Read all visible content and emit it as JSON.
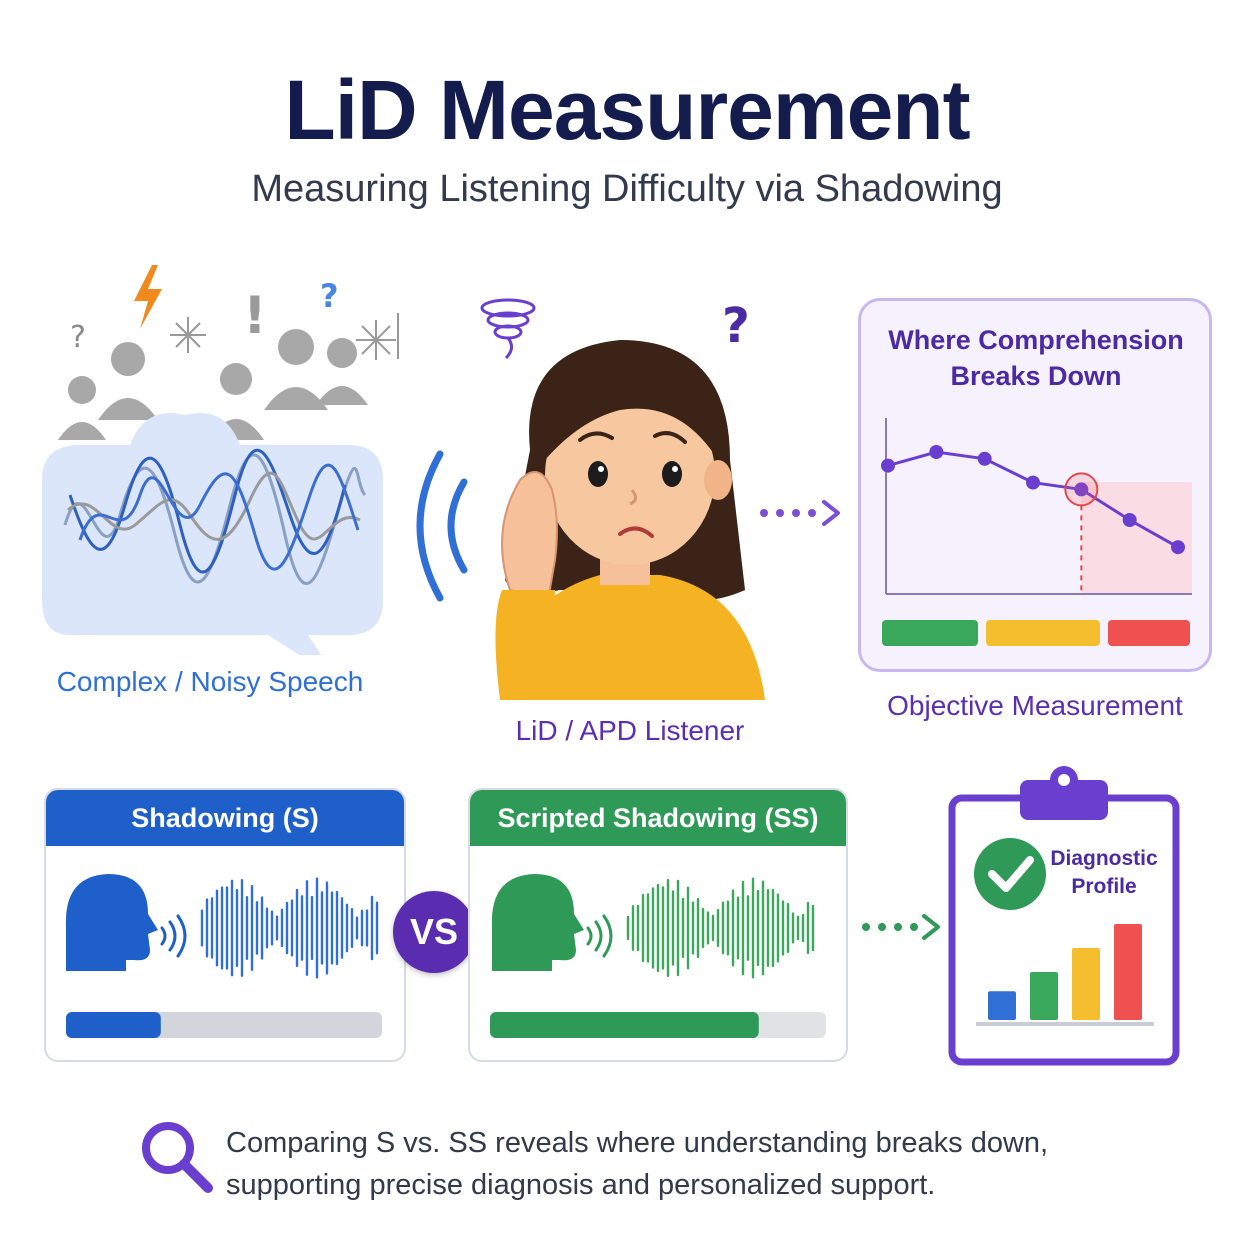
{
  "header": {
    "title": "LiD Measurement",
    "subtitle": "Measuring Listening Difficulty via Shadowing"
  },
  "scene": {
    "speech_caption": "Complex / Noisy Speech",
    "listener_caption": "LiD / APD Listener",
    "measurement_caption": "Objective Measurement"
  },
  "chart": {
    "title": "Where Comprehension Breaks Down",
    "series_values": [
      0.72,
      0.8,
      0.76,
      0.62,
      0.58,
      0.4,
      0.24
    ],
    "breakdown_index": 4,
    "status_colors": [
      "#3aa85a",
      "#f5be2e",
      "#ef5050"
    ]
  },
  "methods": {
    "shadowing_label": "Shadowing (S)",
    "shadowing_progress": 0.3,
    "scripted_label": "Scripted Shadowing (SS)",
    "scripted_progress": 0.8,
    "vs_label": "VS"
  },
  "profile": {
    "title": "Diagnostic Profile",
    "bar_values": [
      0.3,
      0.5,
      0.75,
      1.0
    ],
    "bar_colors": [
      "#2f6fd6",
      "#3aa85a",
      "#f5be2e",
      "#ef5050"
    ]
  },
  "footer": {
    "text": "Comparing S vs. SS reveals where understanding breaks down, supporting precise diagnosis and personalized support."
  },
  "colors": {
    "blue": "#2f6fd6",
    "green": "#2f9a57",
    "purple": "#5a2cb0",
    "navy": "#131c4d"
  },
  "icons": [
    "people-icon",
    "lightning-icon",
    "question-icon",
    "exclamation-icon",
    "sparkle-icon",
    "sound-wave-icon",
    "spiral-icon",
    "checkmark-icon",
    "magnifier-icon",
    "speaking-head-icon",
    "clipboard-icon"
  ]
}
